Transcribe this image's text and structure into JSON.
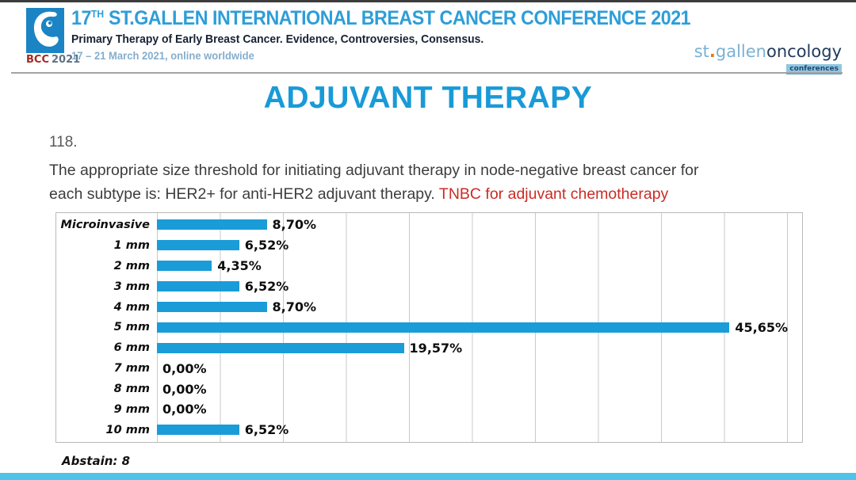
{
  "header": {
    "badge": {
      "label": "BCC",
      "year": "2021"
    },
    "title_number": "17",
    "title_superscript": "TH",
    "title_rest": " ST.GALLEN INTERNATIONAL BREAST CANCER CONFERENCE 2021",
    "subtitle": "Primary Therapy of Early Breast Cancer. Evidence, Controversies, Consensus.",
    "dates": "17 – 21 March 2021, online worldwide",
    "right_logo": {
      "part_st": "st",
      "dot": ".",
      "part_gallen": "gallen",
      "part_oncology": "oncology",
      "badge": "conferences"
    }
  },
  "slide": {
    "title": "ADJUVANT THERAPY",
    "question_number": "118.",
    "question_line1": "The appropriate size threshold for initiating adjuvant therapy in node-negative breast cancer for",
    "question_line2_normal": "each subtype is: HER2+ for anti-HER2 adjuvant therapy. ",
    "question_line2_red": "TNBC for adjuvant chemotherapy",
    "abstain": "Abstain: 8"
  },
  "colors": {
    "bar_blue": "#1a9cd9",
    "slide_title_blue": "#199ad7",
    "header_title_blue": "#2d9ed8",
    "red_text": "#cb2b24",
    "bottom_bar_cyan": "#4fc3ea",
    "logo_square_blue": "#1b84c4"
  },
  "chart_data": {
    "type": "bar",
    "orientation": "horizontal",
    "title": "",
    "xlabel": "",
    "ylabel": "",
    "categories": [
      "Microinvasive",
      "1 mm",
      "2 mm",
      "3 mm",
      "4 mm",
      "5 mm",
      "6 mm",
      "7 mm",
      "8 mm",
      "9 mm",
      "10 mm"
    ],
    "values": [
      8.7,
      6.52,
      4.35,
      6.52,
      8.7,
      45.65,
      19.57,
      0.0,
      0.0,
      0.0,
      6.52
    ],
    "value_labels": [
      "8,70%",
      "6,52%",
      "4,35%",
      "6,52%",
      "8,70%",
      "45,65%",
      "19,57%",
      "0,00%",
      "0,00%",
      "0,00%",
      "6,52%"
    ],
    "xlim": [
      0,
      50
    ],
    "gridline_interval": 5,
    "grid": true,
    "legend": false,
    "bar_color": "#1a9cd9"
  }
}
